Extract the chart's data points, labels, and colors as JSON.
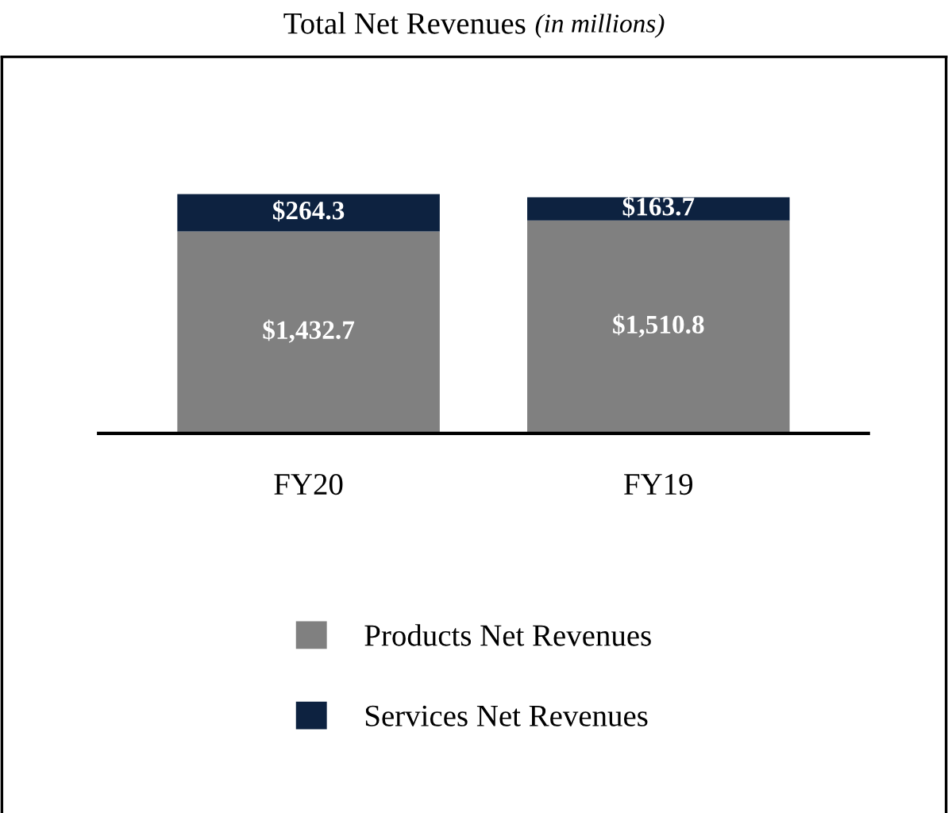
{
  "chart_data": {
    "type": "bar",
    "title": "Total Net Revenues",
    "subtitle": "(in millions)",
    "categories": [
      "FY20",
      "FY19"
    ],
    "stacked": true,
    "legend": "bottom",
    "series": [
      {
        "name": "Products Net Revenues",
        "color": "#808080",
        "values": [
          1432.7,
          1510.8
        ],
        "value_labels": [
          "$1,432.7",
          "$1,510.8"
        ]
      },
      {
        "name": "Services Net Revenues",
        "color": "#0d2240",
        "values": [
          264.3,
          163.7
        ],
        "value_labels": [
          "$264.3",
          "$163.7"
        ]
      }
    ]
  }
}
